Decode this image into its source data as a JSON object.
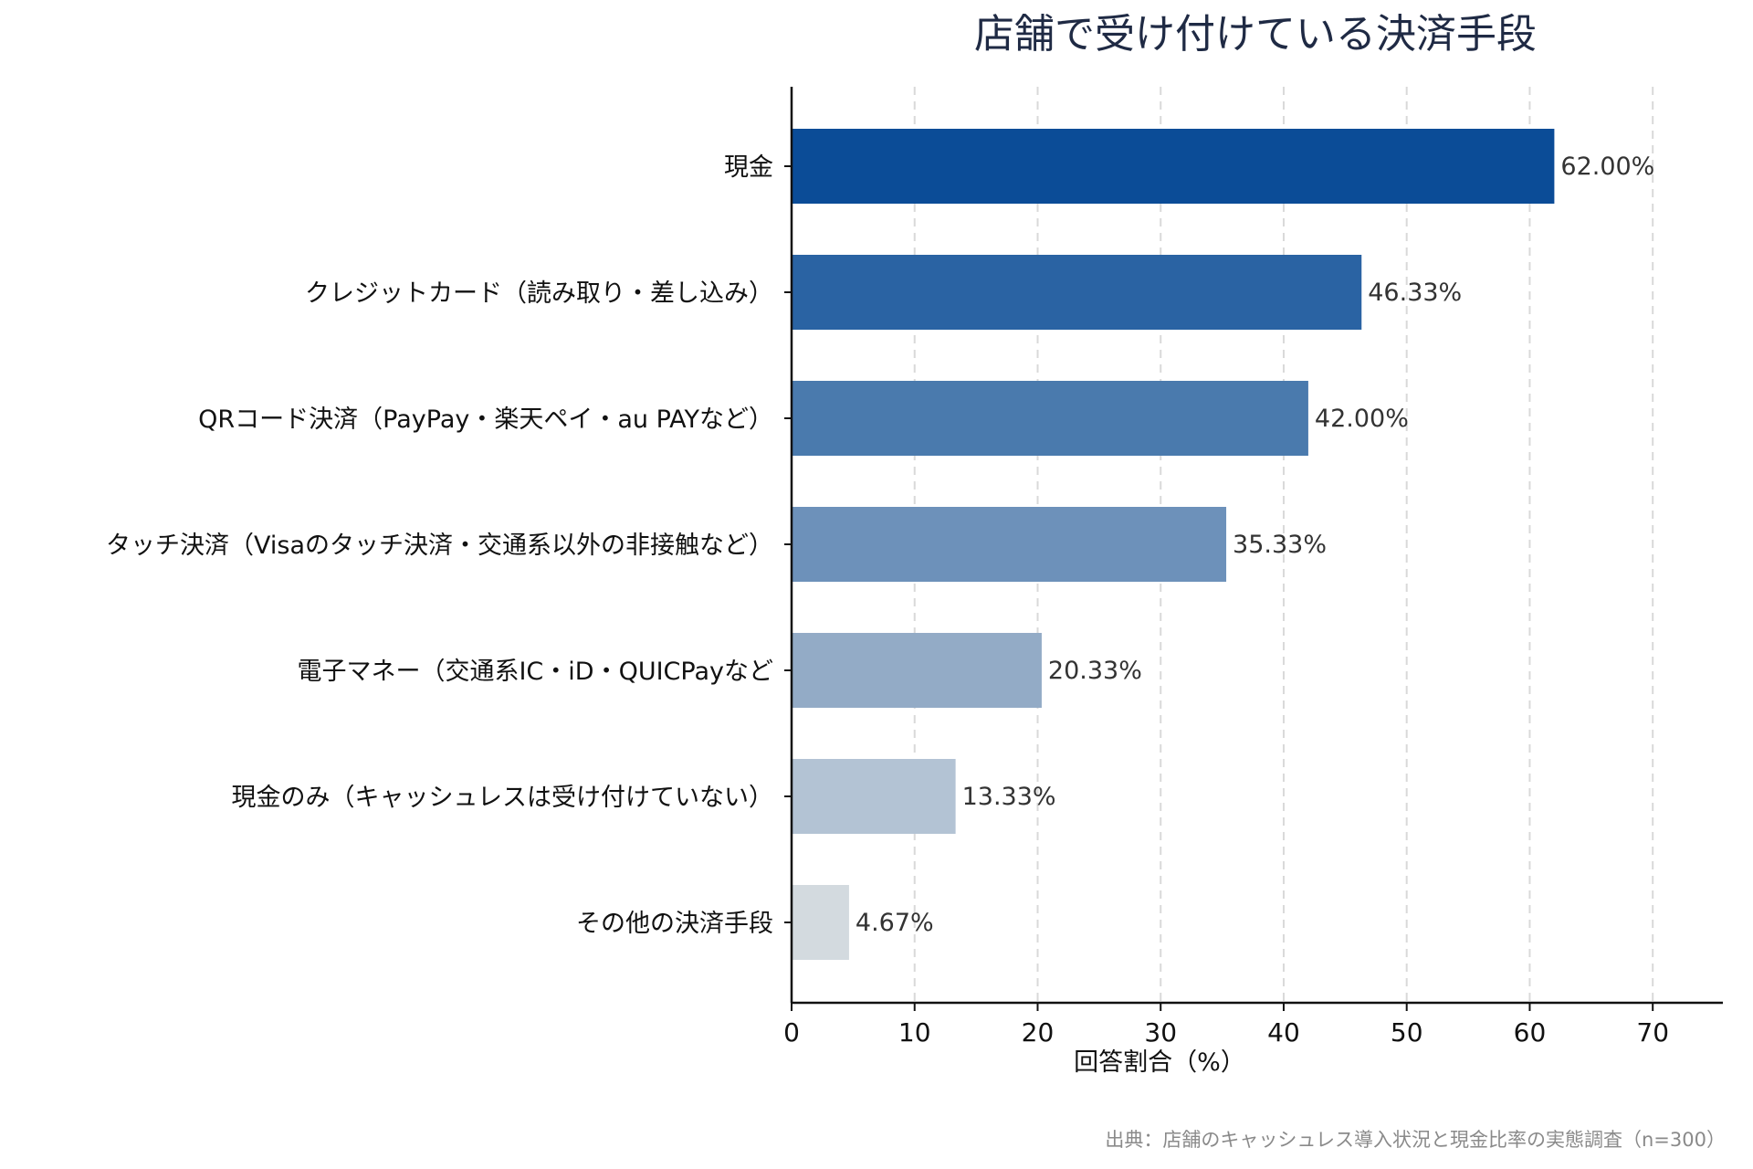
{
  "chart_data": {
    "type": "bar",
    "orientation": "horizontal",
    "title": "店舗で受け付けている決済手段",
    "xlabel": "回答割合（%）",
    "ylabel": "",
    "xlim": [
      0,
      75.7
    ],
    "xticks": [
      0,
      10,
      20,
      30,
      40,
      50,
      60,
      70
    ],
    "grid": "x-dashed",
    "categories": [
      "現金",
      "クレジットカード（読み取り・差し込み）",
      "QRコード決済（PayPay・楽天ペイ・au PAYなど）",
      "タッチ決済（Visaのタッチ決済・交通系以外の非接触など）",
      "電子マネー（交通系IC・iD・QUICPayなど",
      "現金のみ（キャッシュレスは受け付けていない）",
      "その他の決済手段"
    ],
    "values": [
      62.0,
      46.33,
      42.0,
      35.33,
      20.33,
      13.33,
      4.67
    ],
    "value_labels": [
      "62.00%",
      "46.33%",
      "42.00%",
      "35.33%",
      "20.33%",
      "13.33%",
      "4.67%"
    ],
    "colors": [
      "#0b4c97",
      "#2a63a3",
      "#4a7aad",
      "#6d91ba",
      "#93abc6",
      "#b3c3d4",
      "#d3dadf"
    ],
    "source": "出典：店舗のキャッシュレス導入状況と現金比率の実態調査（n=300）"
  }
}
